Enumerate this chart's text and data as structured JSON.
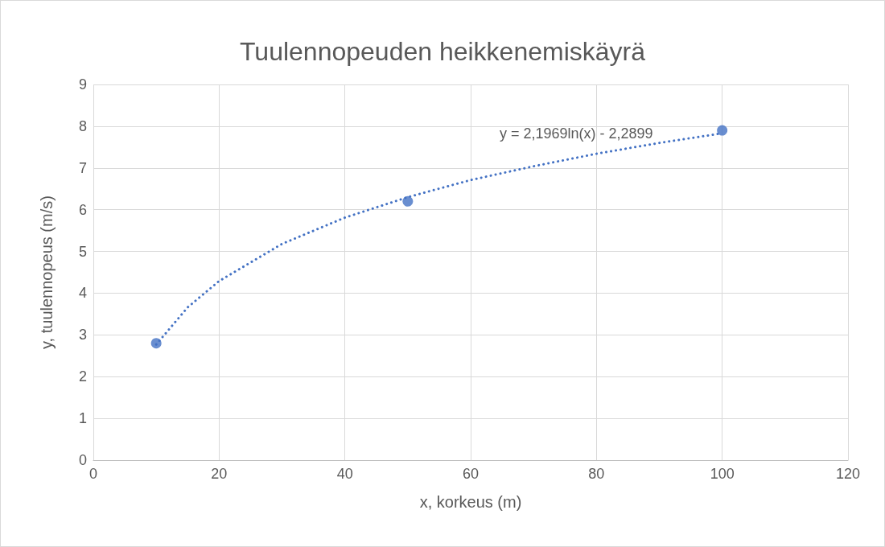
{
  "chart_data": {
    "type": "scatter",
    "title": "Tuulennopeuden heikkenemiskäyrä",
    "xlabel": "x, korkeus (m)",
    "ylabel": "y, tuulennopeus (m/s)",
    "x": [
      10,
      50,
      100
    ],
    "xlim": [
      0,
      120
    ],
    "xticks": [
      0,
      20,
      40,
      60,
      80,
      100,
      120
    ],
    "ylim": [
      0,
      9
    ],
    "yticks": [
      0,
      1,
      2,
      3,
      4,
      5,
      6,
      7,
      8,
      9
    ],
    "grid": true,
    "marker": "circle",
    "series": [
      {
        "color": "#4472c4",
        "values": [
          2.8,
          6.2,
          7.9
        ]
      },
      {
        "type": "line",
        "color": "#4472c4",
        "line_style": "dotted",
        "marker": "none",
        "x": [
          10,
          15,
          20,
          30,
          40,
          50,
          60,
          70,
          80,
          90,
          100
        ],
        "values": [
          2.77,
          3.66,
          4.29,
          5.18,
          5.81,
          6.3,
          6.71,
          7.04,
          7.34,
          7.6,
          7.83
        ]
      }
    ],
    "annotations": [
      "y = 2,1969ln(x) - 2,2899"
    ]
  }
}
